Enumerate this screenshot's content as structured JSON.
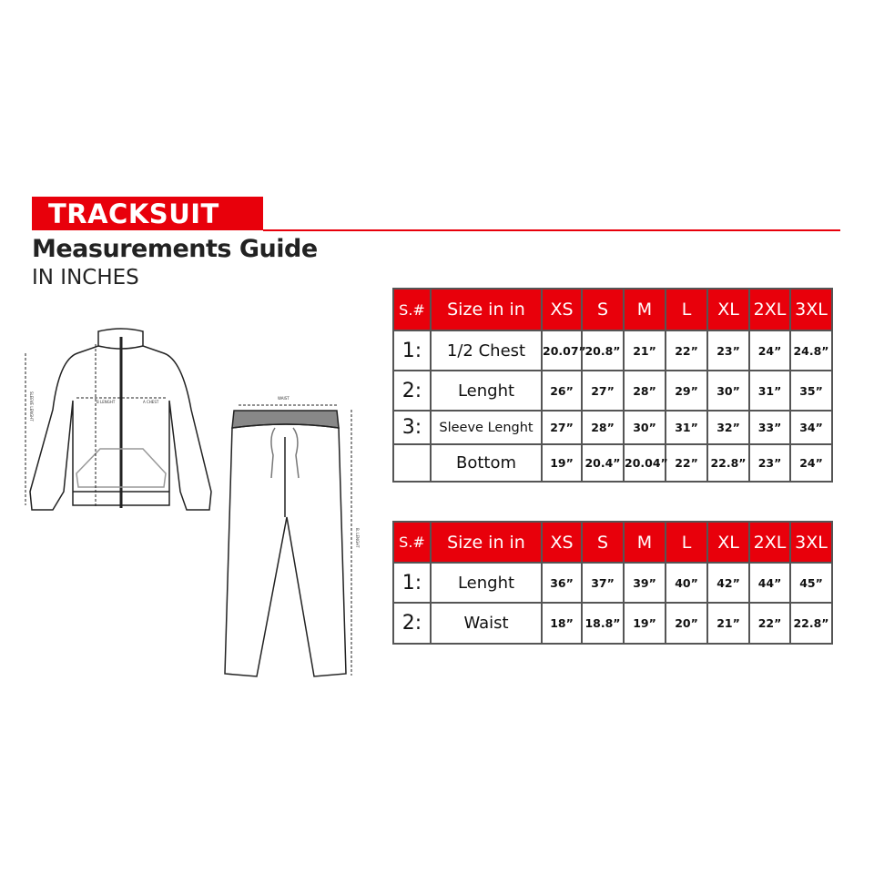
{
  "header": {
    "banner": "TRACKSUIT",
    "title": "Measurements Guide",
    "subtitle": "IN INCHES"
  },
  "accent_color": "#e8000b",
  "illustration": {
    "jacket_labels": {
      "sleeve": "SLEEVE LENGHT",
      "length": "B LENGHT",
      "chest": "A CHEST"
    },
    "pants_labels": {
      "waist": "WAIST",
      "length": "B. LENGHT"
    }
  },
  "top_table": {
    "headers": [
      "S.#",
      "Size in in",
      "XS",
      "S",
      "M",
      "L",
      "XL",
      "2XL",
      "3XL"
    ],
    "rows": [
      {
        "num": "1:",
        "label": "1/2 Chest",
        "values": [
          "20.07”",
          "20.8”",
          "21”",
          "22”",
          "23”",
          "24”",
          "24.8”"
        ]
      },
      {
        "num": "2:",
        "label": "Lenght",
        "values": [
          "26”",
          "27”",
          "28”",
          "29”",
          "30”",
          "31”",
          "35”"
        ]
      },
      {
        "num": "3:",
        "label": "Sleeve Lenght",
        "values": [
          "27”",
          "28”",
          "30”",
          "31”",
          "32”",
          "33”",
          "34”"
        ]
      },
      {
        "num": "",
        "label": "Bottom",
        "values": [
          "19”",
          "20.4”",
          "20.04”",
          "22”",
          "22.8”",
          "23”",
          "24”"
        ]
      }
    ]
  },
  "bottom_table": {
    "headers": [
      "S.#",
      "Size in in",
      "XS",
      "S",
      "M",
      "L",
      "XL",
      "2XL",
      "3XL"
    ],
    "rows": [
      {
        "num": "1:",
        "label": "Lenght",
        "values": [
          "36”",
          "37”",
          "39”",
          "40”",
          "42”",
          "44”",
          "45”"
        ]
      },
      {
        "num": "2:",
        "label": "Waist",
        "values": [
          "18”",
          "18.8”",
          "19”",
          "20”",
          "21”",
          "22”",
          "22.8”"
        ]
      }
    ]
  }
}
